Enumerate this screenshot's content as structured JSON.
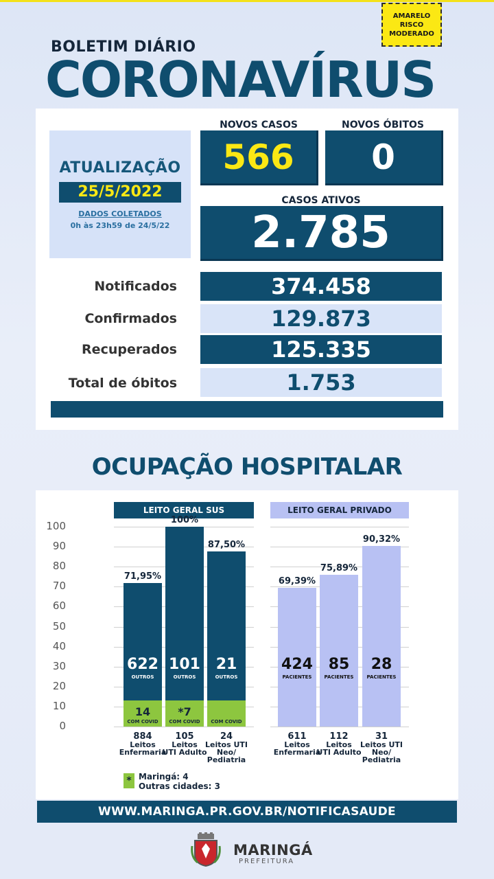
{
  "risk": {
    "line1": "AMARELO",
    "line2": "RISCO",
    "line3": "MODERADO"
  },
  "header": {
    "boletim": "BOLETIM DIÁRIO",
    "title": "CORONAVÍRUS"
  },
  "update": {
    "title": "ATUALIZAÇÃO",
    "date": "25/5/2022",
    "collected": "DADOS COLETADOS",
    "period": "0h às 23h59 de 24/5/22"
  },
  "new_cases": {
    "label": "NOVOS CASOS",
    "value": "566"
  },
  "new_deaths": {
    "label": "NOVOS ÓBITOS",
    "value": "0"
  },
  "active": {
    "label": "CASOS ATIVOS",
    "value": "2.785"
  },
  "stats": [
    {
      "label": "Notificados",
      "value": "374.458"
    },
    {
      "label": "Confirmados",
      "value": "129.873"
    },
    {
      "label": "Recuperados",
      "value": "125.335"
    },
    {
      "label": "Total de óbitos",
      "value": "1.753"
    }
  ],
  "colors": {
    "primary": "#0f4d6e",
    "yellow": "#fbe814",
    "green": "#8dc63f",
    "lavender": "#b8c1f3"
  },
  "hospital": {
    "title": "OCUPAÇÃO HOSPITALAR",
    "sus_header": "LEITO GERAL SUS",
    "priv_header": "LEITO GERAL PRIVADO",
    "note_maringa": "Maringá: 4",
    "note_others": "Outras cidades: 3",
    "note_symbol": "*"
  },
  "chart_data": {
    "type": "bar",
    "ylim": [
      0,
      100
    ],
    "yticks": [
      "100",
      "90",
      "80",
      "70",
      "60",
      "50",
      "40",
      "30",
      "20",
      "10",
      "0"
    ],
    "sus": [
      {
        "pct": 71.95,
        "pct_label": "71,95%",
        "others": "622",
        "others_label": "OUTROS",
        "covid": "14",
        "covid_label": "COM COVID",
        "covid_pct": 13.2,
        "beds": "884",
        "cap1": "Leitos",
        "cap2": "Enfermaria",
        "cap3": ""
      },
      {
        "pct": 100,
        "pct_label": "100%",
        "others": "101",
        "others_label": "OUTROS",
        "covid": "*7",
        "covid_label": "COM COVID",
        "covid_pct": 13.2,
        "beds": "105",
        "cap1": "Leitos",
        "cap2": "UTI Adulto",
        "cap3": ""
      },
      {
        "pct": 87.5,
        "pct_label": "87,50%",
        "others": "21",
        "others_label": "OUTROS",
        "covid": "",
        "covid_label": "COM COVID",
        "covid_pct": 13.2,
        "beds": "24",
        "cap1": "Leitos UTI",
        "cap2": "Neo/",
        "cap3": "Pediatria"
      }
    ],
    "private": [
      {
        "pct": 69.39,
        "pct_label": "69,39%",
        "value": "424",
        "value_label": "PACIENTES",
        "beds": "611",
        "cap1": "Leitos",
        "cap2": "Enfermaria",
        "cap3": ""
      },
      {
        "pct": 75.89,
        "pct_label": "75,89%",
        "value": "85",
        "value_label": "PACIENTES",
        "beds": "112",
        "cap1": "Leitos",
        "cap2": "UTI Adulto",
        "cap3": ""
      },
      {
        "pct": 90.32,
        "pct_label": "90,32%",
        "value": "28",
        "value_label": "PACIENTES",
        "beds": "31",
        "cap1": "Leitos UTI",
        "cap2": "Neo/",
        "cap3": "Pediatria"
      }
    ]
  },
  "footer": {
    "url": "WWW.MARINGA.PR.GOV.BR/NOTIFICASAUDE",
    "brand": "MARINGÁ",
    "brand_sub": "PREFEITURA"
  }
}
